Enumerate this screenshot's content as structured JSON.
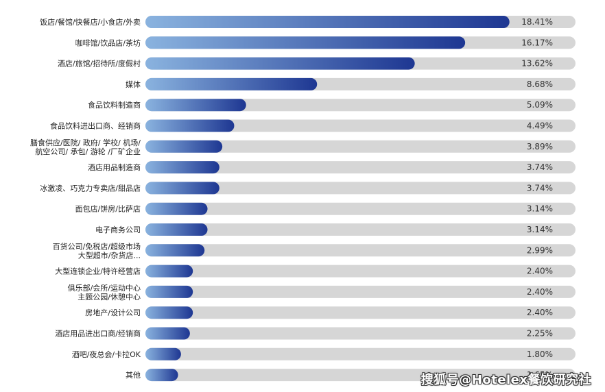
{
  "chart_data": {
    "type": "bar",
    "orientation": "horizontal",
    "categories": [
      "饭店/餐馆/快餐店/小食店/外卖",
      "咖啡馆/饮品店/茶坊",
      "酒店/旅馆/招待所/度假村",
      "媒体",
      "食品饮料制造商",
      "食品饮料进出口商、经销商",
      [
        "膳食供应/医院/ 政府/ 学校/ 机场/",
        "航空公司/ 承包/ 游轮 /厂矿企业"
      ],
      "酒店用品制造商",
      "冰激凌、巧克力专卖店/甜品店",
      "面包店/饼房/比萨店",
      "电子商务公司",
      [
        "百货公司/免税店/超级市场",
        "大型超市/杂货店..."
      ],
      "大型连锁企业/特许经营店",
      [
        "俱乐部/会所/运动中心",
        "主题公园/休憩中心"
      ],
      "房地产/设计公司",
      "酒店用品进出口商/经销商",
      "酒吧/夜总会/卡拉OK",
      "其他"
    ],
    "values": [
      18.41,
      16.17,
      13.62,
      8.68,
      5.09,
      4.49,
      3.89,
      3.74,
      3.74,
      3.14,
      3.14,
      2.99,
      2.4,
      2.4,
      2.4,
      2.25,
      1.8,
      1.65
    ],
    "value_labels": [
      "18.41%",
      "16.17%",
      "13.62%",
      "8.68%",
      "5.09%",
      "4.49%",
      "3.89%",
      "3.74%",
      "3.74%",
      "3.14%",
      "3.14%",
      "2.99%",
      "2.40%",
      "2.40%",
      "2.40%",
      "2.25%",
      "1.80%",
      "1.65%"
    ],
    "xlim": [
      0,
      25
    ],
    "grid": false,
    "legend": "none",
    "colors": {
      "bar_start": "#8ab3df",
      "bar_end": "#1e3792",
      "track": "#d6d6d6",
      "label": "#222222",
      "value": "#333333"
    }
  },
  "watermark": "搜狐号@Hotelex餐饮研究社"
}
